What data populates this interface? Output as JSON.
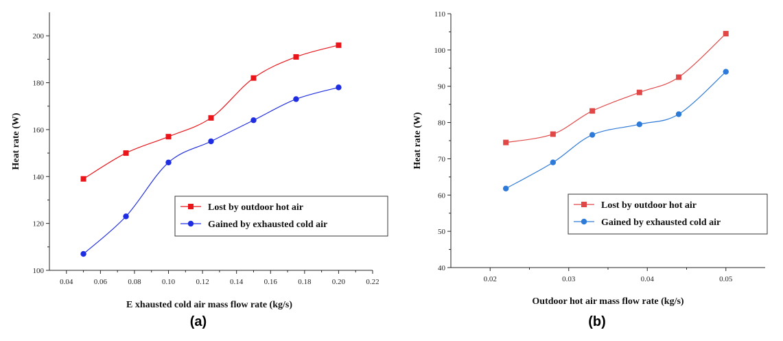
{
  "chart_data": [
    {
      "type": "line",
      "panel_label": "(a)",
      "xlabel": "E xhausted cold air mass flow rate (kg/s)",
      "ylabel": "Heat rate (W)",
      "xlim": [
        0.03,
        0.22
      ],
      "ylim": [
        100,
        210
      ],
      "x_ticks": [
        "0.04",
        "0.06",
        "0.08",
        "0.10",
        "0.12",
        "0.14",
        "0.16",
        "0.18",
        "0.20",
        "0.22"
      ],
      "y_ticks": [
        "100",
        "120",
        "140",
        "160",
        "180",
        "200"
      ],
      "x": [
        0.05,
        0.075,
        0.1,
        0.125,
        0.15,
        0.175,
        0.2
      ],
      "series": [
        {
          "name": "Lost by outdoor hot air",
          "color": "#e8161b",
          "marker": "square",
          "values": [
            139,
            150,
            157,
            165,
            182,
            191,
            196
          ]
        },
        {
          "name": "Gained by exhausted cold air",
          "color": "#1f2de0",
          "marker": "circle",
          "values": [
            107,
            123,
            146,
            155,
            164,
            173,
            178
          ]
        }
      ],
      "legend": "lower-right"
    },
    {
      "type": "line",
      "panel_label": "(b)",
      "xlabel": "Outdoor hot air mass flow rate (kg/s)",
      "ylabel": "Heat rate (W)",
      "xlim": [
        0.015,
        0.055
      ],
      "ylim": [
        40,
        110
      ],
      "x_ticks": [
        "0.02",
        "0.03",
        "0.04",
        "0.05"
      ],
      "y_ticks": [
        "40",
        "50",
        "60",
        "70",
        "80",
        "90",
        "100",
        "110"
      ],
      "x": [
        0.022,
        0.028,
        0.033,
        0.039,
        0.044,
        0.05
      ],
      "series": [
        {
          "name": "Lost by outdoor hot air",
          "color": "#e04848",
          "marker": "square",
          "values": [
            74.5,
            76.8,
            83.2,
            88.3,
            92.5,
            104.5
          ]
        },
        {
          "name": "Gained by exhausted cold air",
          "color": "#2e7ad8",
          "marker": "circle",
          "values": [
            61.8,
            69.0,
            76.6,
            79.5,
            82.3,
            94.0
          ]
        }
      ],
      "legend": "lower-right"
    }
  ]
}
